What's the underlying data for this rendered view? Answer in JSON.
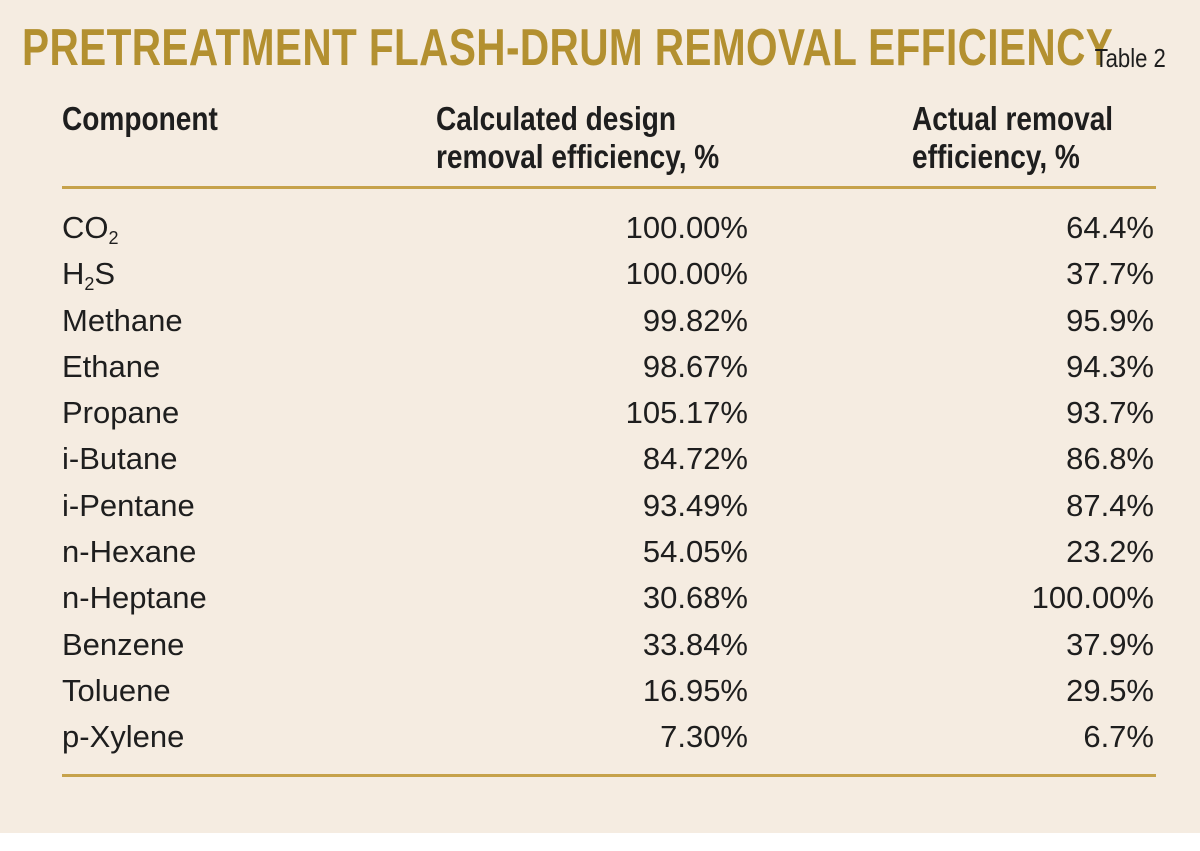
{
  "title": "PRETREATMENT FLASH-DRUM REMOVAL EFFICIENCY",
  "table_label": "Table 2",
  "columns": {
    "component": "Component",
    "design_line1": "Calculated design",
    "design_line2": "removal efficiency, %",
    "actual_line1": "Actual removal",
    "actual_line2": "efficiency, %"
  },
  "rows": [
    {
      "name": "CO",
      "sub": "2",
      "design": "100.00%",
      "actual": "64.4%"
    },
    {
      "name": "H",
      "sub": "2",
      "suffix": "S",
      "design": "100.00%",
      "actual": "37.7%"
    },
    {
      "name": "Methane",
      "design": "99.82%",
      "actual": "95.9%"
    },
    {
      "name": "Ethane",
      "design": "98.67%",
      "actual": "94.3%"
    },
    {
      "name": "Propane",
      "design": "105.17%",
      "actual": "93.7%"
    },
    {
      "name": "i-Butane",
      "design": "84.72%",
      "actual": "86.8%"
    },
    {
      "name": "i-Pentane",
      "design": "93.49%",
      "actual": "87.4%"
    },
    {
      "name": "n-Hexane",
      "design": "54.05%",
      "actual": "23.2%"
    },
    {
      "name": "n-Heptane",
      "design": "30.68%",
      "actual": "100.00%"
    },
    {
      "name": "Benzene",
      "design": "33.84%",
      "actual": "37.9%"
    },
    {
      "name": "Toluene",
      "design": "16.95%",
      "actual": "29.5%"
    },
    {
      "name": "p-Xylene",
      "design": "7.30%",
      "actual": "6.7%"
    }
  ],
  "colors": {
    "background": "#f5ece1",
    "title": "#b39030",
    "rule": "#c6a24b",
    "text": "#1e1e1e"
  }
}
